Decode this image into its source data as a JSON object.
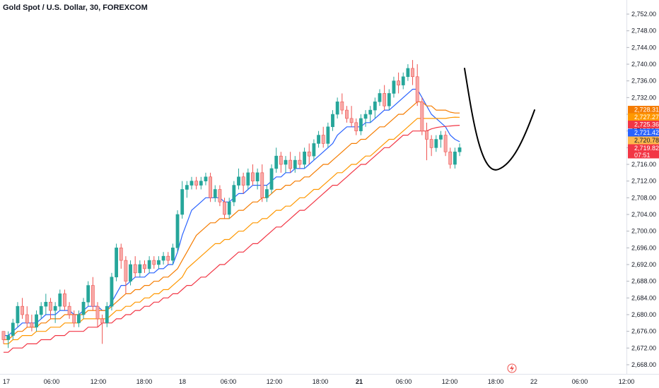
{
  "header": {
    "title": "Gold Spot / U.S. Dollar, 30, FOREXCOM"
  },
  "chart_data": {
    "type": "candlestick",
    "title": "Gold Spot / U.S. Dollar, 30, FOREXCOM",
    "ylim": [
      2666,
      2754
    ],
    "y_ticks": [
      "2,668.00",
      "2,672.00",
      "2,676.00",
      "2,680.00",
      "2,684.00",
      "2,688.00",
      "2,692.00",
      "2,696.00",
      "2,700.00",
      "2,704.00",
      "2,708.00",
      "2,712.00",
      "2,716.00",
      "2,720.00",
      "2,724.00",
      "2,728.00",
      "2,732.00",
      "2,736.00",
      "2,740.00",
      "2,744.00",
      "2,748.00",
      "2,752.00"
    ],
    "x_ticks": [
      {
        "label": "17",
        "bold": false
      },
      {
        "label": "06:00",
        "bold": false
      },
      {
        "label": "12:00",
        "bold": false
      },
      {
        "label": "18:00",
        "bold": false
      },
      {
        "label": "18",
        "bold": false
      },
      {
        "label": "06:00",
        "bold": false
      },
      {
        "label": "12:00",
        "bold": false
      },
      {
        "label": "18:00",
        "bold": false
      },
      {
        "label": "21",
        "bold": true
      },
      {
        "label": "06:00",
        "bold": false
      },
      {
        "label": "12:00",
        "bold": false
      },
      {
        "label": "18:00",
        "bold": false
      },
      {
        "label": "22",
        "bold": false
      },
      {
        "label": "06:00",
        "bold": false
      },
      {
        "label": "12:00",
        "bold": false
      }
    ],
    "candles": [
      [
        2676,
        2676,
        2673,
        2674
      ],
      [
        2674,
        2676,
        2672,
        2675
      ],
      [
        2675,
        2679,
        2674,
        2678
      ],
      [
        2678,
        2683,
        2677,
        2682
      ],
      [
        2682,
        2684,
        2679,
        2680
      ],
      [
        2680,
        2682,
        2677,
        2678
      ],
      [
        2678,
        2680,
        2676,
        2677
      ],
      [
        2677,
        2681,
        2676,
        2680
      ],
      [
        2680,
        2683,
        2679,
        2682
      ],
      [
        2682,
        2685,
        2680,
        2683
      ],
      [
        2683,
        2684,
        2679,
        2681
      ],
      [
        2681,
        2683,
        2678,
        2682
      ],
      [
        2682,
        2686,
        2681,
        2685
      ],
      [
        2685,
        2686,
        2681,
        2682
      ],
      [
        2682,
        2683,
        2679,
        2680
      ],
      [
        2680,
        2681,
        2677,
        2678
      ],
      [
        2678,
        2681,
        2677,
        2680
      ],
      [
        2680,
        2684,
        2679,
        2683
      ],
      [
        2683,
        2688,
        2682,
        2687
      ],
      [
        2687,
        2689,
        2681,
        2682
      ],
      [
        2682,
        2683,
        2677,
        2679
      ],
      [
        2679,
        2680,
        2673,
        2678
      ],
      [
        2678,
        2683,
        2677,
        2682
      ],
      [
        2682,
        2690,
        2681,
        2689
      ],
      [
        2689,
        2697,
        2688,
        2696
      ],
      [
        2696,
        2697,
        2691,
        2693
      ],
      [
        2693,
        2694,
        2685,
        2688
      ],
      [
        2688,
        2693,
        2687,
        2692
      ],
      [
        2692,
        2694,
        2689,
        2690
      ],
      [
        2690,
        2693,
        2689,
        2692
      ],
      [
        2692,
        2693,
        2690,
        2691
      ],
      [
        2691,
        2694,
        2690,
        2693
      ],
      [
        2693,
        2694,
        2691,
        2692
      ],
      [
        2692,
        2694,
        2691,
        2693
      ],
      [
        2693,
        2695,
        2692,
        2694
      ],
      [
        2694,
        2695,
        2692,
        2693
      ],
      [
        2693,
        2697,
        2692,
        2696
      ],
      [
        2696,
        2705,
        2695,
        2704
      ],
      [
        2704,
        2712,
        2703,
        2710
      ],
      [
        2710,
        2712,
        2708,
        2711
      ],
      [
        2711,
        2713,
        2710,
        2712
      ],
      [
        2712,
        2713,
        2710,
        2711
      ],
      [
        2711,
        2713,
        2710,
        2712
      ],
      [
        2712,
        2714,
        2711,
        2713
      ],
      [
        2713,
        2714,
        2707,
        2708
      ],
      [
        2708,
        2711,
        2707,
        2710
      ],
      [
        2710,
        2711,
        2706,
        2707
      ],
      [
        2707,
        2708,
        2703,
        2704
      ],
      [
        2704,
        2708,
        2703,
        2707
      ],
      [
        2707,
        2712,
        2706,
        2711
      ],
      [
        2711,
        2715,
        2710,
        2713
      ],
      [
        2713,
        2714,
        2709,
        2711
      ],
      [
        2711,
        2715,
        2710,
        2714
      ],
      [
        2714,
        2716,
        2711,
        2712
      ],
      [
        2712,
        2715,
        2710,
        2714
      ],
      [
        2714,
        2716,
        2707,
        2708
      ],
      [
        2708,
        2711,
        2707,
        2710
      ],
      [
        2710,
        2716,
        2709,
        2715
      ],
      [
        2715,
        2720,
        2714,
        2718
      ],
      [
        2718,
        2719,
        2714,
        2716
      ],
      [
        2716,
        2718,
        2714,
        2717
      ],
      [
        2717,
        2719,
        2714,
        2715
      ],
      [
        2715,
        2718,
        2714,
        2717
      ],
      [
        2717,
        2719,
        2715,
        2716
      ],
      [
        2716,
        2720,
        2715,
        2719
      ],
      [
        2719,
        2721,
        2716,
        2718
      ],
      [
        2718,
        2722,
        2717,
        2721
      ],
      [
        2721,
        2724,
        2720,
        2723
      ],
      [
        2723,
        2725,
        2720,
        2721
      ],
      [
        2721,
        2726,
        2720,
        2725
      ],
      [
        2725,
        2729,
        2724,
        2728
      ],
      [
        2728,
        2732,
        2727,
        2731
      ],
      [
        2731,
        2733,
        2728,
        2729
      ],
      [
        2729,
        2730,
        2726,
        2727
      ],
      [
        2727,
        2730,
        2725,
        2726
      ],
      [
        2726,
        2727,
        2723,
        2724
      ],
      [
        2724,
        2728,
        2723,
        2727
      ],
      [
        2727,
        2729,
        2725,
        2728
      ],
      [
        2728,
        2730,
        2726,
        2729
      ],
      [
        2729,
        2732,
        2727,
        2731
      ],
      [
        2731,
        2734,
        2730,
        2733
      ],
      [
        2733,
        2735,
        2729,
        2730
      ],
      [
        2730,
        2734,
        2729,
        2733
      ],
      [
        2733,
        2737,
        2732,
        2736
      ],
      [
        2736,
        2738,
        2733,
        2735
      ],
      [
        2735,
        2738,
        2734,
        2737
      ],
      [
        2737,
        2740,
        2736,
        2739
      ],
      [
        2739,
        2741,
        2735,
        2737
      ],
      [
        2737,
        2740,
        2730,
        2731
      ],
      [
        2731,
        2732,
        2723,
        2724
      ],
      [
        2724,
        2726,
        2717,
        2722
      ],
      [
        2722,
        2723,
        2718,
        2720
      ],
      [
        2720,
        2723,
        2719,
        2722
      ],
      [
        2722,
        2724,
        2720,
        2723
      ],
      [
        2723,
        2724,
        2718,
        2719
      ],
      [
        2719,
        2720,
        2715,
        2716
      ],
      [
        2716,
        2720,
        2715,
        2719
      ],
      [
        2719,
        2721,
        2718,
        2720
      ]
    ],
    "series": [
      {
        "type": "ema",
        "color": "#2962ff",
        "values": [
          2675,
          2675,
          2676,
          2677,
          2678,
          2678,
          2678,
          2678,
          2679,
          2680,
          2680,
          2680,
          2681,
          2681,
          2681,
          2680,
          2680,
          2681,
          2682,
          2682,
          2682,
          2681,
          2681,
          2683,
          2685,
          2687,
          2687,
          2688,
          2689,
          2689,
          2689,
          2690,
          2690,
          2691,
          2691,
          2692,
          2692,
          2695,
          2699,
          2702,
          2705,
          2706,
          2707,
          2708,
          2708,
          2708,
          2708,
          2707,
          2707,
          2708,
          2709,
          2709,
          2710,
          2711,
          2711,
          2711,
          2711,
          2712,
          2713,
          2713,
          2714,
          2714,
          2715,
          2715,
          2715,
          2716,
          2717,
          2718,
          2719,
          2720,
          2721,
          2723,
          2724,
          2725,
          2725,
          2725,
          2725,
          2726,
          2726,
          2727,
          2728,
          2729,
          2729,
          2730,
          2731,
          2732,
          2733,
          2734,
          2734,
          2732,
          2730,
          2728,
          2727,
          2726,
          2725,
          2723,
          2722,
          2721.42
        ]
      },
      {
        "type": "ema",
        "color": "#f57c00",
        "values": [
          2674,
          2674,
          2675,
          2676,
          2676,
          2677,
          2677,
          2677,
          2678,
          2678,
          2679,
          2679,
          2679,
          2680,
          2680,
          2680,
          2680,
          2680,
          2681,
          2681,
          2681,
          2681,
          2681,
          2682,
          2683,
          2684,
          2685,
          2685,
          2686,
          2686,
          2687,
          2687,
          2688,
          2688,
          2689,
          2689,
          2690,
          2691,
          2693,
          2695,
          2697,
          2699,
          2700,
          2701,
          2702,
          2702,
          2703,
          2703,
          2703,
          2704,
          2705,
          2705,
          2706,
          2707,
          2707,
          2708,
          2708,
          2709,
          2710,
          2710,
          2711,
          2711,
          2712,
          2712,
          2713,
          2713,
          2714,
          2715,
          2716,
          2716,
          2717,
          2718,
          2719,
          2720,
          2721,
          2721,
          2722,
          2722,
          2723,
          2724,
          2725,
          2725,
          2726,
          2727,
          2728,
          2728,
          2729,
          2730,
          2731,
          2731,
          2730,
          2730,
          2729,
          2729,
          2729,
          2728.5,
          2728.3,
          2728.31
        ]
      },
      {
        "type": "ema",
        "color": "#ff9800",
        "values": [
          2673,
          2673,
          2674,
          2674,
          2675,
          2675,
          2675,
          2676,
          2676,
          2676,
          2677,
          2677,
          2677,
          2678,
          2678,
          2678,
          2678,
          2679,
          2679,
          2679,
          2679,
          2679,
          2679,
          2680,
          2681,
          2681,
          2682,
          2682,
          2683,
          2683,
          2684,
          2684,
          2685,
          2685,
          2686,
          2686,
          2687,
          2688,
          2689,
          2691,
          2692,
          2693,
          2694,
          2695,
          2696,
          2697,
          2697,
          2698,
          2698,
          2699,
          2700,
          2700,
          2701,
          2702,
          2702,
          2703,
          2703,
          2704,
          2705,
          2705,
          2706,
          2706,
          2707,
          2708,
          2708,
          2709,
          2710,
          2710,
          2711,
          2712,
          2713,
          2714,
          2714,
          2715,
          2716,
          2716,
          2717,
          2718,
          2718,
          2719,
          2720,
          2721,
          2722,
          2722,
          2723,
          2724,
          2725,
          2726,
          2727,
          2727,
          2727,
          2727,
          2727,
          2727,
          2727,
          2727.2,
          2727.3,
          2727.27
        ]
      },
      {
        "type": "ema",
        "color": "#f23645",
        "values": [
          2671,
          2671,
          2672,
          2672,
          2672,
          2673,
          2673,
          2673,
          2674,
          2674,
          2674,
          2675,
          2675,
          2675,
          2676,
          2676,
          2676,
          2676,
          2677,
          2677,
          2677,
          2678,
          2678,
          2678,
          2679,
          2679,
          2680,
          2680,
          2681,
          2681,
          2682,
          2682,
          2683,
          2683,
          2684,
          2684,
          2685,
          2685,
          2686,
          2687,
          2687,
          2688,
          2689,
          2689,
          2690,
          2691,
          2692,
          2692,
          2693,
          2694,
          2695,
          2695,
          2696,
          2697,
          2697,
          2698,
          2699,
          2700,
          2701,
          2701,
          2702,
          2703,
          2704,
          2705,
          2705,
          2706,
          2707,
          2708,
          2709,
          2710,
          2711,
          2711,
          2712,
          2713,
          2714,
          2715,
          2716,
          2716,
          2717,
          2718,
          2719,
          2720,
          2720,
          2721,
          2722,
          2723,
          2723,
          2724,
          2724,
          2724,
          2724,
          2724.5,
          2724.8,
          2725,
          2725.1,
          2725.2,
          2725.3,
          2725.36
        ]
      }
    ],
    "price_badges": [
      {
        "value": "2,728.31",
        "color": "#f57c00"
      },
      {
        "value": "2,727.27",
        "color": "#ff9800"
      },
      {
        "value": "2,725.36",
        "color": "#f23645"
      },
      {
        "value": "2,721.42",
        "color": "#2962ff"
      },
      {
        "value": "2,720.78",
        "color": "#ffb74d"
      },
      {
        "value": "2,719.82",
        "color": "#f23645"
      },
      {
        "value": "07:51",
        "color": "#f23645"
      }
    ],
    "colors": {
      "up": "#26a69a",
      "down": "#ef5350",
      "drawing": "#000000"
    },
    "grid": false,
    "annotation": {
      "type": "curve",
      "shape": "U"
    }
  }
}
